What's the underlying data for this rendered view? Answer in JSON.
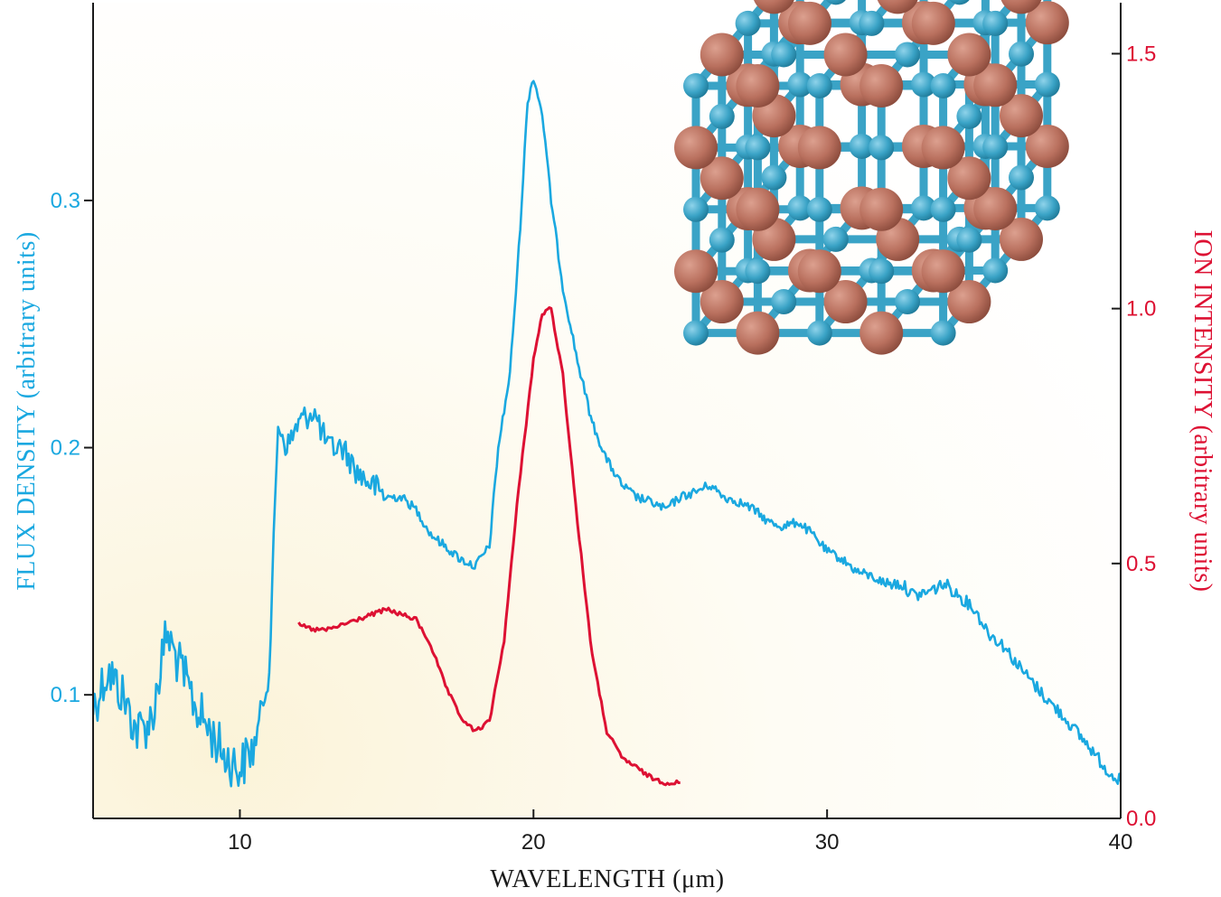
{
  "colors": {
    "flux": "#1aa8e0",
    "ion": "#dd1133",
    "axis": "#1a1a1a",
    "background_warm": "#fbf3d8",
    "atom_blue": "#3aa3c6",
    "atom_copper": "#b9705e"
  },
  "chart_data": {
    "type": "line",
    "xlabel": "WAVELENGTH (μm)",
    "ylabel_left": "FLUX DENSITY (arbitrary units)",
    "ylabel_right": "ION INTENSITY (arbitrary units)",
    "xlim": [
      5,
      40
    ],
    "ylim_left": [
      0.05,
      0.38
    ],
    "ylim_right": [
      0.0,
      1.6
    ],
    "x_ticks": [
      "10",
      "20",
      "30",
      "40"
    ],
    "x_tick_values": [
      10,
      20,
      30,
      40
    ],
    "y_left_ticks": [
      "0.1",
      "0.2",
      "0.3"
    ],
    "y_left_tick_values": [
      0.1,
      0.2,
      0.3
    ],
    "y_right_ticks": [
      "0.0",
      "0.5",
      "1.0",
      "1.5"
    ],
    "y_right_tick_values": [
      0.0,
      0.5,
      1.0,
      1.5
    ],
    "grid": false,
    "inset": "crystal-lattice illustration (blue and copper spheres) at upper right",
    "series": [
      {
        "axis": "left",
        "x": [
          5.0,
          5.5,
          6.0,
          6.5,
          7.0,
          7.5,
          8.0,
          8.5,
          9.0,
          9.5,
          10.0,
          10.5,
          11.0,
          11.3,
          11.6,
          12.0,
          12.5,
          13.0,
          13.5,
          14.0,
          14.5,
          15.0,
          15.5,
          16.0,
          16.5,
          17.0,
          17.5,
          18.0,
          18.5,
          18.8,
          19.2,
          19.5,
          19.8,
          20.0,
          20.3,
          20.6,
          21.0,
          21.5,
          22.0,
          22.5,
          23.0,
          23.5,
          24.0,
          24.5,
          25.0,
          25.5,
          26.0,
          26.5,
          27.0,
          27.5,
          28.0,
          28.5,
          29.0,
          29.5,
          30.0,
          30.5,
          31.0,
          31.5,
          32.0,
          32.5,
          33.0,
          33.5,
          34.0,
          34.5,
          35.0,
          35.5,
          36.0,
          36.5,
          37.0,
          37.5,
          38.0,
          38.5,
          39.0,
          39.5,
          40.0
        ],
        "values": [
          0.095,
          0.11,
          0.1,
          0.085,
          0.09,
          0.125,
          0.11,
          0.095,
          0.085,
          0.075,
          0.07,
          0.08,
          0.11,
          0.21,
          0.2,
          0.21,
          0.215,
          0.2,
          0.2,
          0.19,
          0.185,
          0.18,
          0.18,
          0.175,
          0.165,
          0.16,
          0.155,
          0.152,
          0.16,
          0.2,
          0.23,
          0.28,
          0.34,
          0.35,
          0.335,
          0.3,
          0.265,
          0.235,
          0.21,
          0.195,
          0.185,
          0.18,
          0.178,
          0.175,
          0.18,
          0.182,
          0.185,
          0.18,
          0.178,
          0.175,
          0.17,
          0.168,
          0.17,
          0.165,
          0.158,
          0.155,
          0.15,
          0.148,
          0.145,
          0.145,
          0.14,
          0.142,
          0.145,
          0.14,
          0.135,
          0.125,
          0.12,
          0.112,
          0.105,
          0.098,
          0.092,
          0.085,
          0.078,
          0.07,
          0.065
        ]
      },
      {
        "axis": "right",
        "x": [
          12.0,
          12.5,
          13.0,
          13.5,
          14.0,
          14.5,
          15.0,
          15.5,
          16.0,
          16.5,
          17.0,
          17.5,
          18.0,
          18.5,
          19.0,
          19.5,
          20.0,
          20.3,
          20.6,
          21.0,
          21.5,
          22.0,
          22.5,
          23.0,
          23.5,
          24.0,
          24.5,
          25.0
        ],
        "values": [
          0.38,
          0.37,
          0.37,
          0.38,
          0.39,
          0.4,
          0.41,
          0.4,
          0.39,
          0.34,
          0.26,
          0.2,
          0.17,
          0.19,
          0.35,
          0.65,
          0.9,
          0.99,
          1.0,
          0.87,
          0.58,
          0.32,
          0.17,
          0.12,
          0.1,
          0.08,
          0.07,
          0.07
        ]
      }
    ]
  }
}
